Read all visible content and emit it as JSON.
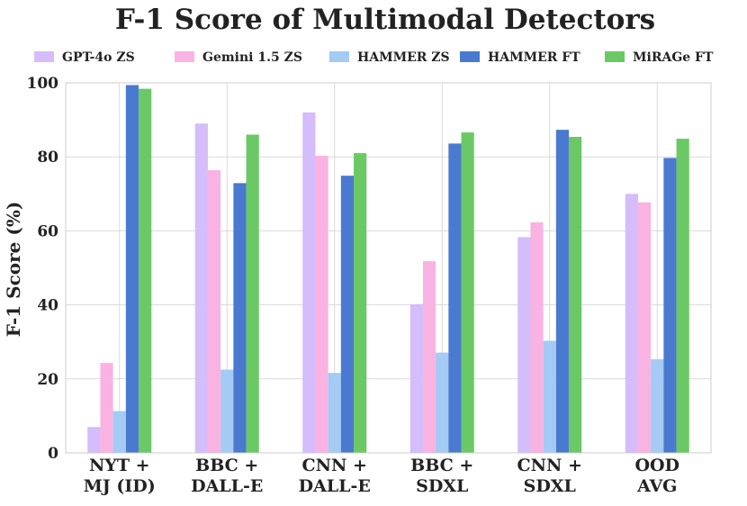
{
  "chart_data": {
    "type": "bar",
    "title": "F-1 Score of Multimodal Detectors",
    "xlabel": "",
    "ylabel": "F-1 Score (%)",
    "ylim": [
      0,
      100
    ],
    "yticks": [
      0,
      20,
      40,
      60,
      80,
      100
    ],
    "grid": true,
    "legend_position": "top",
    "categories": [
      [
        "NYT +",
        "MJ (ID)"
      ],
      [
        "BBC +",
        "DALL-E"
      ],
      [
        "CNN +",
        "DALL-E"
      ],
      [
        "BBC +",
        "SDXL"
      ],
      [
        "CNN +",
        "SDXL"
      ],
      [
        "OOD",
        "AVG"
      ]
    ],
    "series": [
      {
        "name": "GPT-4o ZS",
        "color": "#d4bdfa",
        "values": [
          7,
          89,
          92,
          40.2,
          58.3,
          70
        ]
      },
      {
        "name": "Gemini 1.5 ZS",
        "color": "#f9b3e3",
        "values": [
          24.3,
          76.4,
          80.3,
          51.8,
          62.3,
          67.7
        ]
      },
      {
        "name": "HAMMER ZS",
        "color": "#a3cbf4",
        "values": [
          11.3,
          22.5,
          21.6,
          27.1,
          30.3,
          25.3
        ]
      },
      {
        "name": "HAMMER FT",
        "color": "#4a79d0",
        "values": [
          99.4,
          72.9,
          74.9,
          83.6,
          87.3,
          79.7
        ]
      },
      {
        "name": "MiRAGe FT",
        "color": "#6ac965",
        "values": [
          98.4,
          86,
          81,
          86.6,
          85.4,
          84.9
        ]
      }
    ]
  }
}
